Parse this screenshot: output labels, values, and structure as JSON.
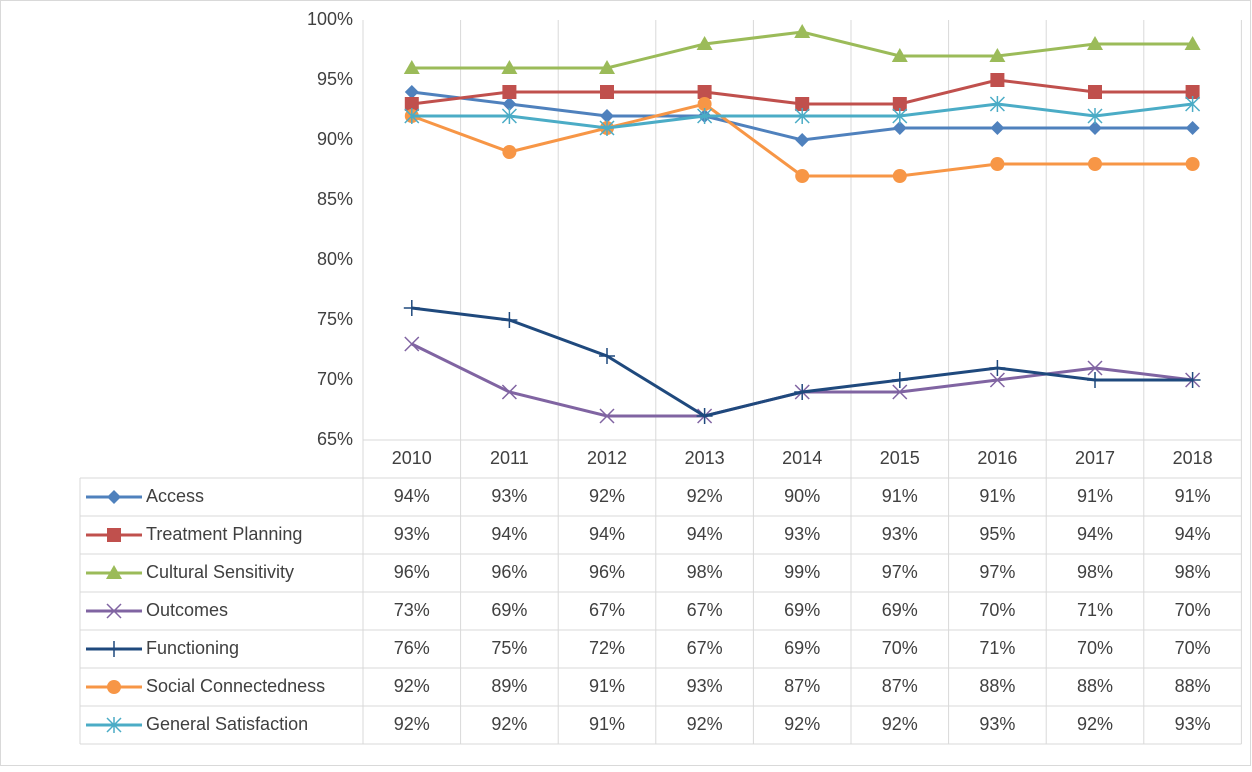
{
  "chart_data": {
    "type": "line",
    "categories": [
      "2010",
      "2011",
      "2012",
      "2013",
      "2014",
      "2015",
      "2016",
      "2017",
      "2018"
    ],
    "ylim": [
      65,
      100
    ],
    "yticks": [
      {
        "value": 65,
        "label": "65%"
      },
      {
        "value": 70,
        "label": "70%"
      },
      {
        "value": 75,
        "label": "75%"
      },
      {
        "value": 80,
        "label": "80%"
      },
      {
        "value": 85,
        "label": "85%"
      },
      {
        "value": 90,
        "label": "90%"
      },
      {
        "value": 95,
        "label": "95%"
      },
      {
        "value": 100,
        "label": "100%"
      }
    ],
    "series": [
      {
        "name": "Access",
        "color": "#4f81bd",
        "marker": "diamond",
        "values": [
          94,
          93,
          92,
          92,
          90,
          91,
          91,
          91,
          91
        ],
        "value_labels": [
          "94%",
          "93%",
          "92%",
          "92%",
          "90%",
          "91%",
          "91%",
          "91%",
          "91%"
        ]
      },
      {
        "name": "Treatment Planning",
        "color": "#c0504d",
        "marker": "square",
        "values": [
          93,
          94,
          94,
          94,
          93,
          93,
          95,
          94,
          94
        ],
        "value_labels": [
          "93%",
          "94%",
          "94%",
          "94%",
          "93%",
          "93%",
          "95%",
          "94%",
          "94%"
        ]
      },
      {
        "name": "Cultural Sensitivity",
        "color": "#9bbb59",
        "marker": "triangle",
        "values": [
          96,
          96,
          96,
          98,
          99,
          97,
          97,
          98,
          98
        ],
        "value_labels": [
          "96%",
          "96%",
          "96%",
          "98%",
          "99%",
          "97%",
          "97%",
          "98%",
          "98%"
        ]
      },
      {
        "name": "Outcomes",
        "color": "#8064a2",
        "marker": "x",
        "values": [
          73,
          69,
          67,
          67,
          69,
          69,
          70,
          71,
          70
        ],
        "value_labels": [
          "73%",
          "69%",
          "67%",
          "67%",
          "69%",
          "69%",
          "70%",
          "71%",
          "70%"
        ]
      },
      {
        "name": "Functioning",
        "color": "#1f497d",
        "marker": "plus",
        "values": [
          76,
          75,
          72,
          67,
          69,
          70,
          71,
          70,
          70
        ],
        "value_labels": [
          "76%",
          "75%",
          "72%",
          "67%",
          "69%",
          "70%",
          "71%",
          "70%",
          "70%"
        ]
      },
      {
        "name": "Social Connectedness",
        "color": "#f79646",
        "marker": "circle",
        "values": [
          92,
          89,
          91,
          93,
          87,
          87,
          88,
          88,
          88
        ],
        "value_labels": [
          "92%",
          "89%",
          "91%",
          "93%",
          "87%",
          "87%",
          "88%",
          "88%",
          "88%"
        ]
      },
      {
        "name": "General Satisfaction",
        "color": "#4bacc6",
        "marker": "star",
        "values": [
          92,
          92,
          91,
          92,
          92,
          92,
          93,
          92,
          93
        ],
        "value_labels": [
          "92%",
          "92%",
          "91%",
          "92%",
          "92%",
          "92%",
          "93%",
          "92%",
          "93%"
        ]
      }
    ]
  }
}
